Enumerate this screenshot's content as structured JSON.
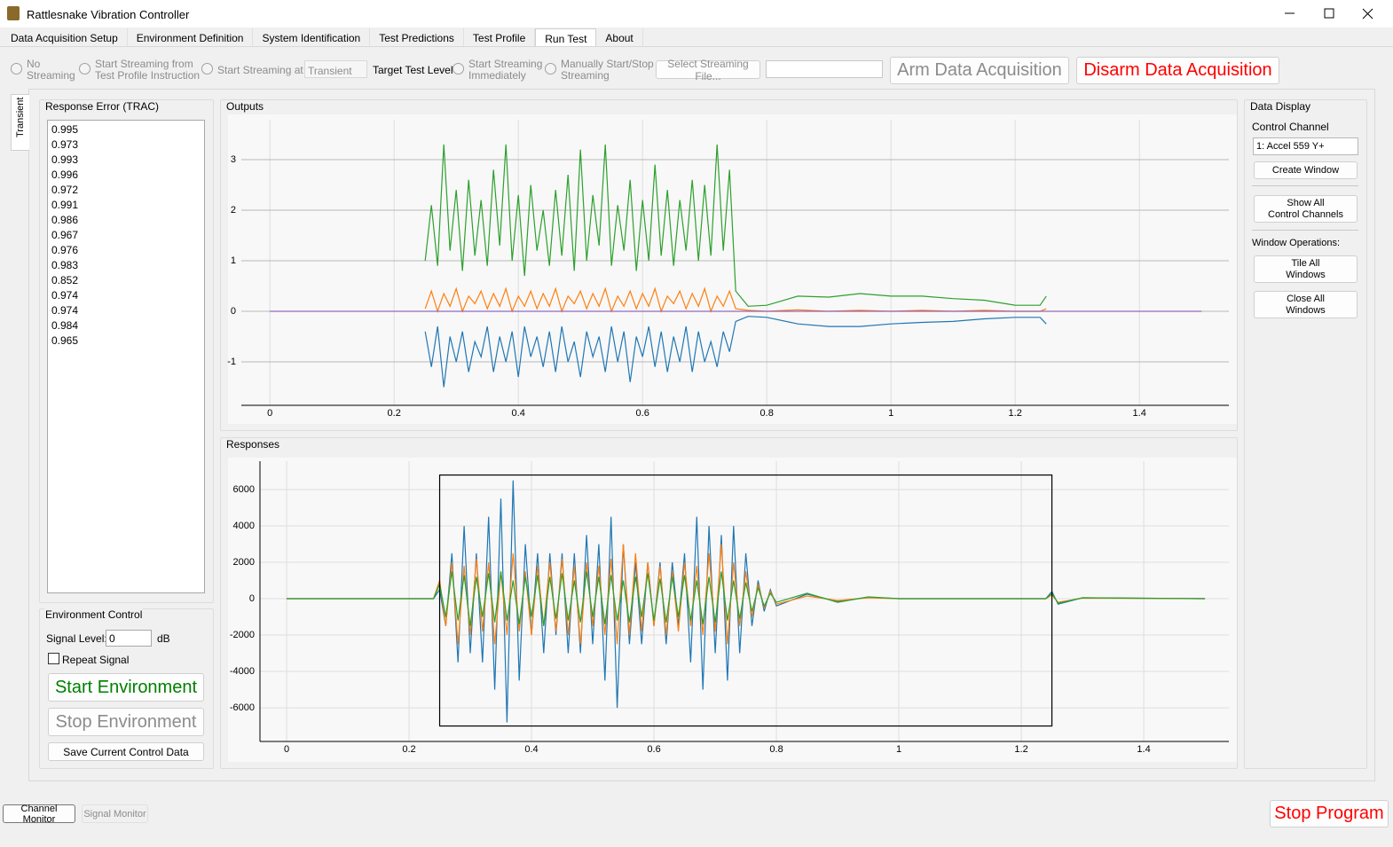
{
  "ui": {
    "window": {
      "title": "Rattlesnake Vibration Controller"
    },
    "tabs": [
      "Data Acquisition Setup",
      "Environment Definition",
      "System Identification",
      "Test Predictions",
      "Test Profile",
      "Run Test",
      "About"
    ],
    "active_tab": 5,
    "toolbar": {
      "no_streaming": "No\nStreaming",
      "stream_from_profile": "Start Streaming from\nTest Profile Instruction",
      "stream_at": "Start Streaming at",
      "stream_at_level": "Transient",
      "target_level": "Target Test Level",
      "stream_immediately": "Start Streaming\nImmediately",
      "manual_stream": "Manually Start/Stop\nStreaming",
      "select_file": "Select Streaming File...",
      "arm": "Arm Data Acquisition",
      "disarm": "Disarm Data Acquisition"
    },
    "side_tab": "Transient",
    "response_error": {
      "title": "Response Error (TRAC)",
      "values": [
        0.995,
        0.973,
        0.993,
        0.996,
        0.972,
        0.991,
        0.986,
        0.967,
        0.976,
        0.983,
        0.852,
        0.974,
        0.974,
        0.984,
        0.965
      ]
    },
    "environment_control": {
      "title": "Environment Control",
      "signal_level_label": "Signal Level:",
      "signal_level": 0,
      "unit": "dB",
      "repeat": "Repeat Signal",
      "start": "Start Environment",
      "stop": "Stop Environment",
      "save": "Save Current Control Data"
    },
    "data_display": {
      "title": "Data Display",
      "control_channel_label": "Control Channel",
      "control_channel": "1: Accel 559 Y+",
      "create_window": "Create Window",
      "show_all": "Show All\nControl Channels",
      "window_operations": "Window Operations:",
      "tile_all": "Tile All\nWindows",
      "close_all": "Close All\nWindows"
    },
    "bottom": {
      "channel_monitor": "Channel Monitor",
      "signal_monitor": "Signal Monitor",
      "stop": "Stop Program"
    }
  },
  "chart_data": [
    {
      "type": "line",
      "title": "Outputs",
      "grid": true,
      "xlim": [
        -0.046,
        1.544
      ],
      "ylim": [
        -1.86,
        3.79
      ],
      "xticks": [
        0,
        0.2,
        0.4,
        0.6,
        0.8,
        1,
        1.2,
        1.4
      ],
      "yticks": [
        -1,
        0,
        1,
        2,
        3
      ],
      "x": [
        0,
        0.24,
        0.25,
        0.26,
        0.27,
        0.28,
        0.29,
        0.3,
        0.31,
        0.32,
        0.33,
        0.34,
        0.35,
        0.36,
        0.37,
        0.38,
        0.39,
        0.4,
        0.41,
        0.42,
        0.43,
        0.44,
        0.45,
        0.46,
        0.47,
        0.48,
        0.49,
        0.5,
        0.51,
        0.52,
        0.53,
        0.54,
        0.55,
        0.56,
        0.57,
        0.58,
        0.59,
        0.6,
        0.61,
        0.62,
        0.63,
        0.64,
        0.65,
        0.66,
        0.67,
        0.68,
        0.69,
        0.7,
        0.71,
        0.72,
        0.73,
        0.74,
        0.75,
        0.77,
        0.8,
        0.85,
        0.9,
        0.95,
        1,
        1.05,
        1.1,
        1.15,
        1.2,
        1.24,
        1.25,
        1.26,
        1.5
      ],
      "series": [
        {
          "color": "#1f77b4",
          "values": [
            null,
            null,
            -0.4,
            -1.1,
            -0.3,
            -1.5,
            -0.5,
            -1.0,
            -0.4,
            -1.2,
            -0.6,
            -0.9,
            -0.3,
            -1.2,
            -0.5,
            -1.0,
            -0.4,
            -1.3,
            -0.3,
            -0.9,
            -0.5,
            -1.1,
            -0.4,
            -1.2,
            -0.3,
            -1.0,
            -0.6,
            -1.3,
            -0.4,
            -0.9,
            -0.5,
            -1.2,
            -0.3,
            -1.0,
            -0.4,
            -1.4,
            -0.5,
            -0.9,
            -0.3,
            -1.1,
            -0.4,
            -1.2,
            -0.5,
            -1.0,
            -0.3,
            -1.2,
            -0.4,
            -1.0,
            -0.6,
            -1.1,
            -0.4,
            -0.8,
            -0.2,
            -0.1,
            -0.12,
            -0.25,
            -0.3,
            -0.3,
            -0.25,
            -0.22,
            -0.2,
            -0.15,
            -0.12,
            -0.12,
            -0.25,
            null,
            null
          ]
        },
        {
          "color": "#ff7f0e",
          "values": [
            null,
            null,
            0.05,
            0.4,
            0.0,
            0.35,
            0.1,
            0.45,
            0.0,
            0.3,
            0.15,
            0.4,
            0.05,
            0.35,
            0.1,
            0.45,
            0.0,
            0.3,
            0.1,
            0.4,
            0.05,
            0.35,
            0.1,
            0.45,
            0.0,
            0.3,
            0.15,
            0.4,
            0.05,
            0.35,
            0.1,
            0.45,
            0.0,
            0.3,
            0.1,
            0.4,
            0.05,
            0.35,
            0.1,
            0.45,
            0.0,
            0.3,
            0.15,
            0.4,
            0.05,
            0.35,
            0.1,
            0.45,
            0.0,
            0.3,
            0.1,
            0.4,
            0.05,
            0.02,
            0.0,
            0.03,
            0.0,
            0.02,
            0.0,
            0.02,
            0.0,
            0.02,
            0.0,
            0.0,
            0.05,
            null,
            null
          ]
        },
        {
          "color": "#2ca02c",
          "values": [
            null,
            null,
            1.0,
            2.1,
            0.9,
            3.3,
            1.2,
            2.4,
            0.8,
            2.6,
            1.1,
            2.2,
            0.9,
            2.8,
            1.3,
            3.3,
            1.0,
            2.3,
            0.7,
            2.5,
            1.2,
            2.0,
            0.9,
            2.4,
            1.1,
            2.7,
            0.8,
            3.2,
            1.0,
            2.3,
            1.3,
            3.3,
            0.9,
            2.1,
            1.2,
            2.6,
            0.8,
            2.2,
            1.0,
            2.9,
            1.1,
            2.4,
            0.9,
            2.2,
            1.2,
            2.6,
            1.0,
            2.5,
            1.1,
            3.3,
            1.2,
            2.8,
            0.4,
            0.1,
            0.12,
            0.3,
            0.28,
            0.35,
            0.3,
            0.3,
            0.25,
            0.22,
            0.12,
            0.12,
            0.3,
            null,
            null
          ]
        },
        {
          "color": "#9467bd",
          "values": [
            0,
            0,
            0,
            0,
            0,
            0,
            0,
            0,
            0,
            0,
            0,
            0,
            0,
            0,
            0,
            0,
            0,
            0,
            0,
            0,
            0,
            0,
            0,
            0,
            0,
            0,
            0,
            0,
            0,
            0,
            0,
            0,
            0,
            0,
            0,
            0,
            0,
            0,
            0,
            0,
            0,
            0,
            0,
            0,
            0,
            0,
            0,
            0,
            0,
            0,
            0,
            0,
            0,
            0,
            0,
            0,
            0,
            0,
            0,
            0,
            0,
            0,
            0,
            0,
            0,
            0,
            0
          ]
        }
      ]
    },
    {
      "type": "line",
      "title": "Responses",
      "grid": true,
      "xlim": [
        -0.0435,
        1.539
      ],
      "ylim": [
        -7850,
        7560
      ],
      "xticks": [
        0,
        0.2,
        0.4,
        0.6,
        0.8,
        1,
        1.2,
        1.4
      ],
      "yticks": [
        -6000,
        -4000,
        -2000,
        0,
        2000,
        4000,
        6000
      ],
      "region": {
        "x": [
          0.25,
          1.25
        ],
        "y": [
          -7000,
          6800
        ]
      },
      "x": [
        0,
        0.24,
        0.25,
        0.26,
        0.27,
        0.28,
        0.29,
        0.3,
        0.31,
        0.32,
        0.33,
        0.34,
        0.35,
        0.36,
        0.37,
        0.38,
        0.39,
        0.4,
        0.41,
        0.42,
        0.43,
        0.44,
        0.45,
        0.46,
        0.47,
        0.48,
        0.49,
        0.5,
        0.51,
        0.52,
        0.53,
        0.54,
        0.55,
        0.56,
        0.57,
        0.58,
        0.59,
        0.6,
        0.61,
        0.62,
        0.63,
        0.64,
        0.65,
        0.66,
        0.67,
        0.68,
        0.69,
        0.7,
        0.71,
        0.72,
        0.73,
        0.74,
        0.75,
        0.76,
        0.77,
        0.78,
        0.79,
        0.8,
        0.85,
        0.9,
        0.95,
        1,
        1.24,
        1.25,
        1.26,
        1.3,
        1.5
      ],
      "series": [
        {
          "color": "#1f77b4",
          "values": [
            0,
            0,
            500,
            -1500,
            2500,
            -3500,
            4000,
            -3000,
            2500,
            -3500,
            4500,
            -5000,
            5500,
            -6800,
            6500,
            -4500,
            3000,
            -2000,
            2500,
            -3000,
            2500,
            -2000,
            2500,
            -3000,
            2500,
            -3000,
            3500,
            -2500,
            3000,
            -4500,
            4500,
            -6000,
            3000,
            -2500,
            2000,
            -2500,
            2000,
            -1500,
            2000,
            -2500,
            2000,
            -1500,
            2500,
            -3500,
            4500,
            -5000,
            4000,
            -3000,
            3500,
            -4500,
            4000,
            -3000,
            2500,
            -1500,
            1000,
            -700,
            500,
            -400,
            250,
            -150,
            80,
            0,
            0,
            400,
            -300,
            50,
            0
          ]
        },
        {
          "color": "#ff7f0e",
          "values": [
            0,
            0,
            1000,
            -1500,
            2000,
            -2500,
            1800,
            -2000,
            2200,
            -1800,
            2000,
            -2500,
            1500,
            -2000,
            2500,
            -1800,
            1500,
            -2000,
            1800,
            -1500,
            2000,
            -1800,
            2200,
            -2000,
            1800,
            -2500,
            2000,
            -1500,
            1800,
            -2000,
            2200,
            -2500,
            3000,
            -2000,
            2500,
            -1800,
            2000,
            -1500,
            1800,
            -2000,
            1500,
            -1800,
            2000,
            -1500,
            1800,
            -2000,
            2500,
            -1800,
            3000,
            -2500,
            2000,
            -1500,
            1500,
            -1000,
            800,
            -500,
            400,
            -300,
            150,
            -100,
            50,
            0,
            0,
            200,
            -200,
            30,
            0
          ]
        },
        {
          "color": "#2ca02c",
          "values": [
            0,
            0,
            800,
            -1000,
            1500,
            -1200,
            1300,
            -1500,
            1200,
            -1000,
            1400,
            -1300,
            1500,
            -1200,
            1000,
            -1400,
            1200,
            -1000,
            1300,
            -1500,
            1200,
            -1100,
            1400,
            -1200,
            1000,
            -1300,
            1500,
            -1000,
            1200,
            -1400,
            1300,
            -1200,
            1000,
            -1300,
            1200,
            -1000,
            1400,
            -1200,
            1100,
            -1300,
            1200,
            -1000,
            1300,
            -1200,
            1000,
            -1400,
            1200,
            -1300,
            1500,
            -1200,
            1000,
            -1100,
            900,
            -700,
            600,
            -400,
            300,
            -200,
            300,
            -200,
            100,
            0,
            0,
            300,
            -250,
            50,
            0
          ]
        }
      ]
    }
  ]
}
